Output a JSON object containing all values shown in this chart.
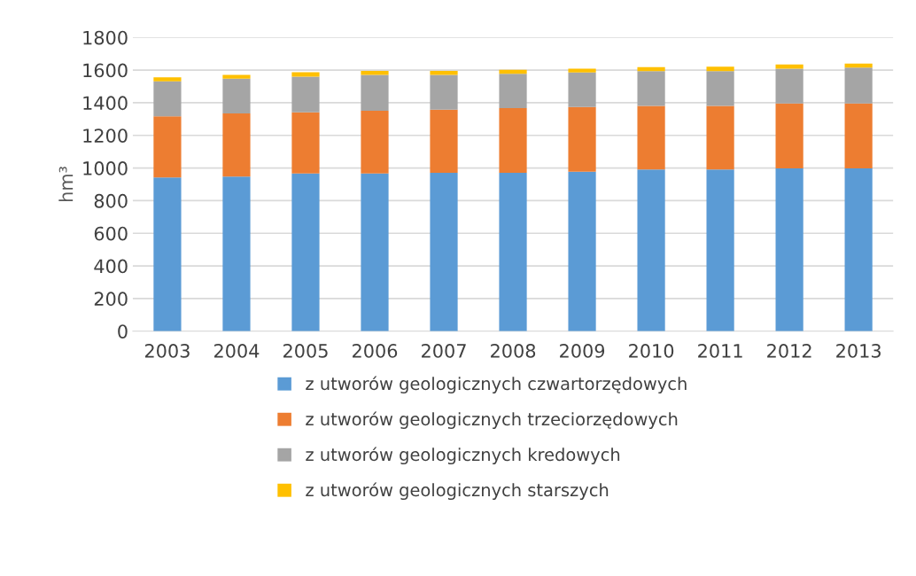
{
  "chart_data": {
    "type": "bar",
    "stacked": true,
    "ylabel": "hm³",
    "categories": [
      "2003",
      "2004",
      "2005",
      "2006",
      "2007",
      "2008",
      "2009",
      "2010",
      "2011",
      "2012",
      "2013"
    ],
    "series": [
      {
        "name": "z utworów geologicznych czwartorzędowych",
        "color": "#5b9bd5",
        "values": [
          942,
          948,
          966,
          966,
          970,
          970,
          978,
          991,
          991,
          998,
          998
        ]
      },
      {
        "name": "z utworów geologicznych trzeciorzędowych",
        "color": "#ed7d31",
        "values": [
          375,
          386,
          375,
          384,
          387,
          397,
          396,
          390,
          390,
          398,
          398
        ]
      },
      {
        "name": "z utworów geologicznych kredowych",
        "color": "#a5a5a5",
        "values": [
          214,
          213,
          219,
          221,
          214,
          211,
          212,
          212,
          212,
          213,
          220
        ]
      },
      {
        "name": "z utworów geologicznych starszych",
        "color": "#ffc000",
        "values": [
          24,
          24,
          27,
          24,
          24,
          24,
          23,
          25,
          28,
          26,
          24
        ]
      }
    ],
    "ylim": [
      0,
      1800
    ],
    "yticks": [
      0,
      200,
      400,
      600,
      800,
      1000,
      1200,
      1400,
      1600,
      1800
    ],
    "grid": "y",
    "legend": "bottom"
  }
}
